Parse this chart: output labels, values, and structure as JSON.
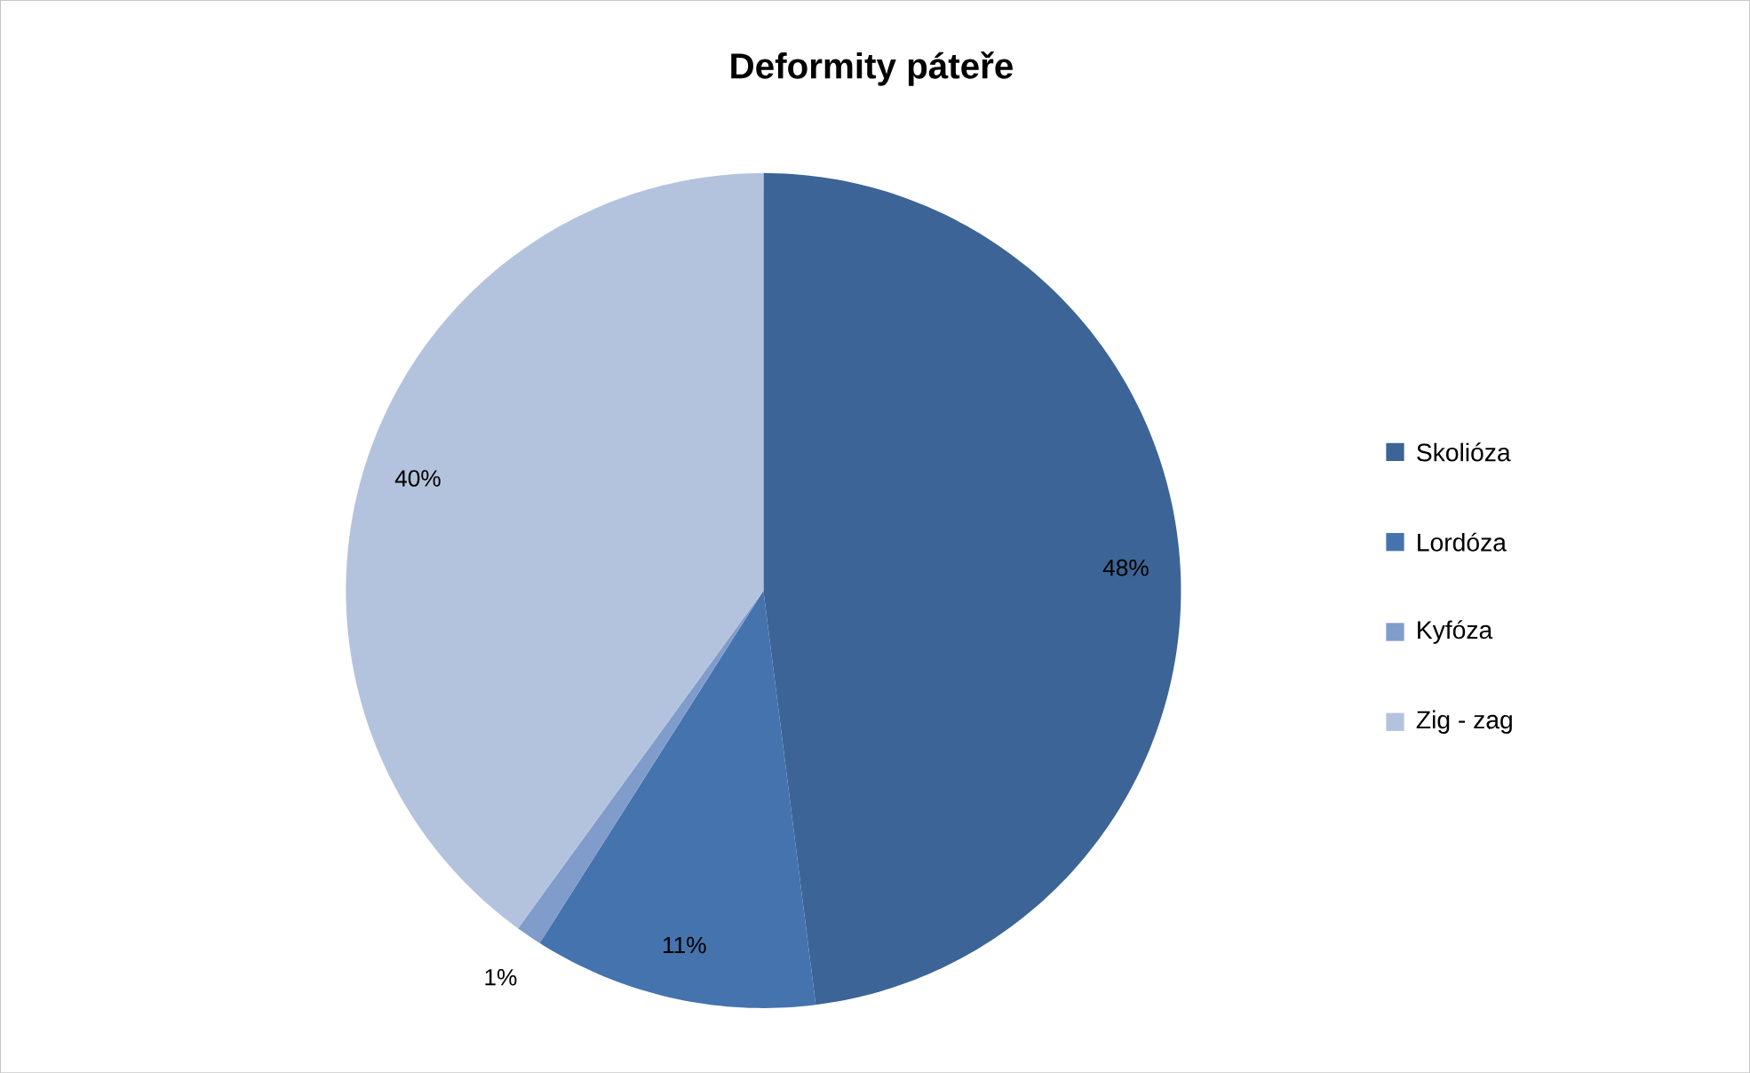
{
  "chart_data": {
    "type": "pie",
    "title": "Deformity páteře",
    "categories": [
      "Skolióza",
      "Lordóza",
      "Kyfóza",
      "Zig - zag"
    ],
    "values": [
      48,
      11,
      1,
      40
    ],
    "value_labels": [
      "48%",
      "11%",
      "1%",
      "40%"
    ],
    "colors": [
      "#3c6496",
      "#4573ad",
      "#7f9ccb",
      "#b4c3dd"
    ],
    "legend": "right"
  }
}
